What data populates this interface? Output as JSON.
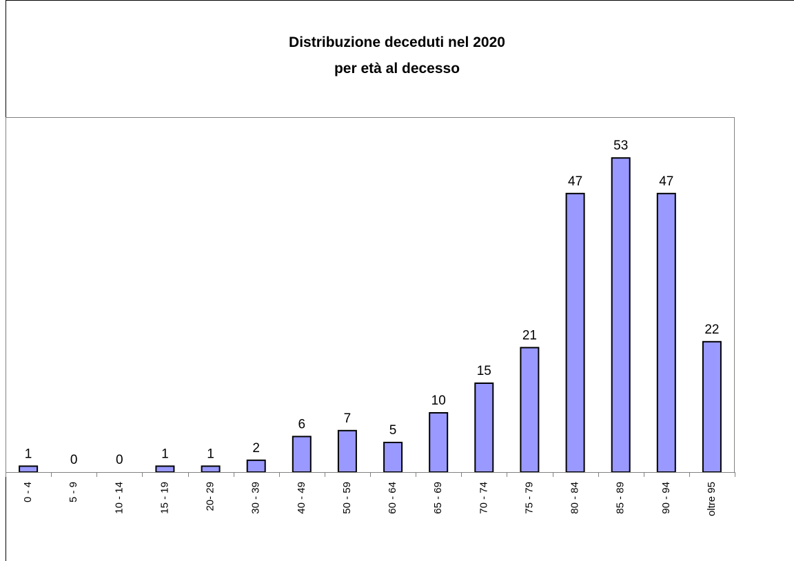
{
  "chart_data": {
    "type": "bar",
    "title": [
      "Distribuzione deceduti nel 2020",
      "per età al decesso"
    ],
    "xlabel": "",
    "ylabel": "",
    "categories": [
      "0 - 4",
      "5 - 9",
      "10 - 14",
      "15 - 19",
      "20- 29",
      "30 - 39",
      "40 - 49",
      "50 - 59",
      "60 - 64",
      "65 - 69",
      "70 - 74",
      "75 - 79",
      "80 - 84",
      "85 - 89",
      "90 - 94",
      "oltre 95"
    ],
    "values": [
      1,
      0,
      0,
      1,
      1,
      2,
      6,
      7,
      5,
      10,
      15,
      21,
      47,
      53,
      47,
      22
    ],
    "ylim": [
      0,
      60
    ],
    "grid": false,
    "legend": "none",
    "bar_color": "#9999ff",
    "bar_edge_color": "#000000",
    "axis_color": "#808080"
  }
}
